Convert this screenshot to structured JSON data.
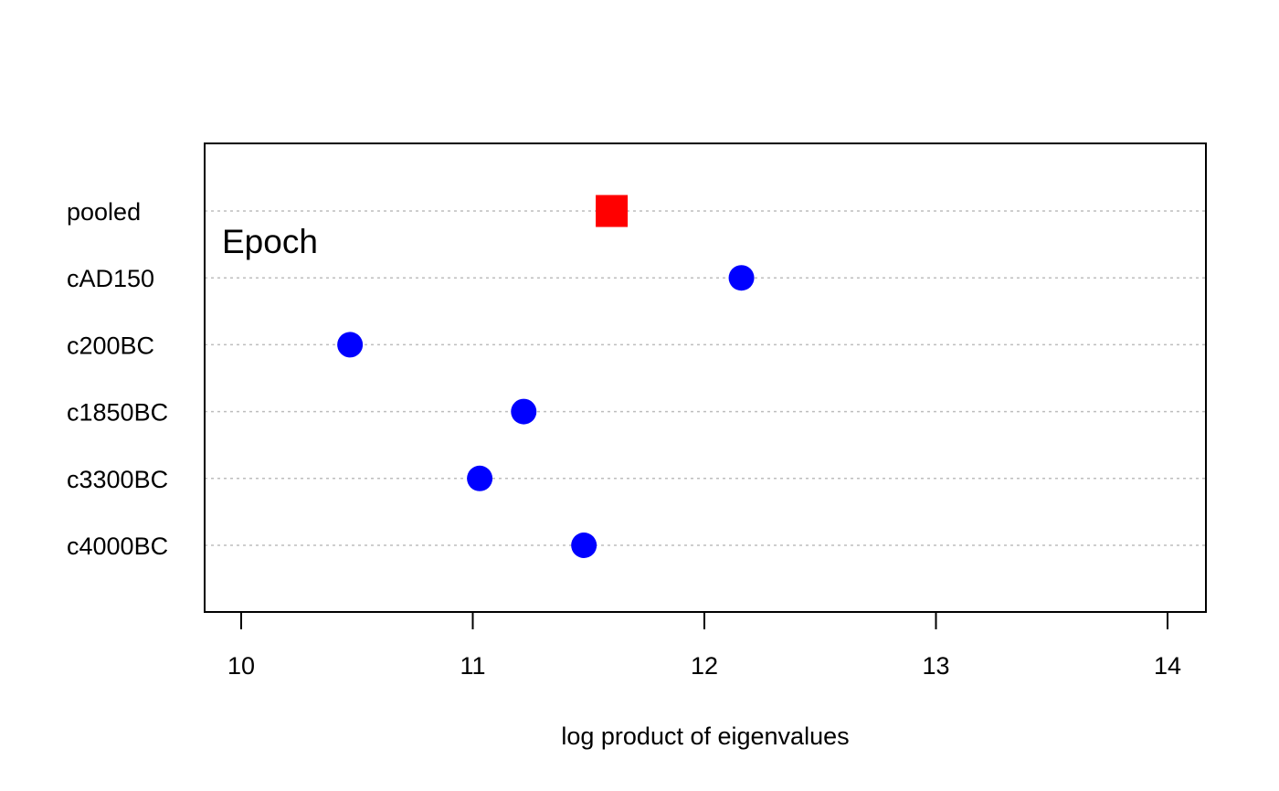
{
  "chart_data": {
    "type": "scatter",
    "title": "",
    "panel_label": "Epoch",
    "xlabel": "log product of eigenvalues",
    "ylabel": "",
    "xlim": [
      9.85,
      14.15
    ],
    "xticks": [
      10,
      11,
      12,
      13,
      14
    ],
    "grid": "horizontal dotted",
    "categories": [
      "pooled",
      "cAD150",
      "c200BC",
      "c1850BC",
      "c3300BC",
      "c4000BC"
    ],
    "series": [
      {
        "marker": "square",
        "color": "#ff0000",
        "points": [
          {
            "category": "pooled",
            "x": 11.6
          }
        ]
      },
      {
        "marker": "circle",
        "color": "#0000ff",
        "points": [
          {
            "category": "cAD150",
            "x": 12.16
          },
          {
            "category": "c200BC",
            "x": 10.47
          },
          {
            "category": "c1850BC",
            "x": 11.22
          },
          {
            "category": "c3300BC",
            "x": 11.03
          },
          {
            "category": "c4000BC",
            "x": 11.48
          }
        ]
      }
    ]
  }
}
